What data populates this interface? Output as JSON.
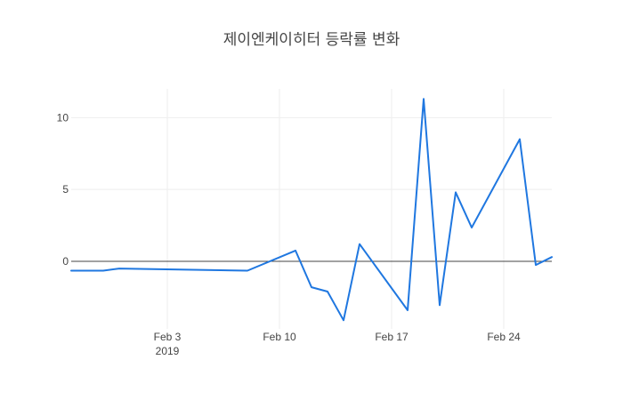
{
  "chart_data": {
    "type": "line",
    "title": "제이엔케이히터 등락률 변화",
    "xlabel": "",
    "ylabel": "",
    "x_axis": {
      "type": "date",
      "range": [
        "2019-01-28",
        "2019-02-27"
      ],
      "ticks": [
        {
          "value": "2019-02-03",
          "label": "Feb 3",
          "sublabel": "2019"
        },
        {
          "value": "2019-02-10",
          "label": "Feb 10",
          "sublabel": ""
        },
        {
          "value": "2019-02-17",
          "label": "Feb 17",
          "sublabel": ""
        },
        {
          "value": "2019-02-24",
          "label": "Feb 24",
          "sublabel": ""
        }
      ]
    },
    "y_axis": {
      "range": [
        -4.7,
        12.0
      ],
      "ticks": [
        {
          "value": 0,
          "label": "0"
        },
        {
          "value": 5,
          "label": "5"
        },
        {
          "value": 10,
          "label": "10"
        }
      ]
    },
    "grid": true,
    "zero_line": true,
    "series": [
      {
        "color": "#1f77e0",
        "points": [
          {
            "x": "2019-01-28",
            "y": -0.65
          },
          {
            "x": "2019-01-30",
            "y": -0.65
          },
          {
            "x": "2019-01-31",
            "y": -0.5
          },
          {
            "x": "2019-02-08",
            "y": -0.65
          },
          {
            "x": "2019-02-11",
            "y": 0.75
          },
          {
            "x": "2019-02-12",
            "y": -1.8
          },
          {
            "x": "2019-02-13",
            "y": -2.1
          },
          {
            "x": "2019-02-14",
            "y": -4.1
          },
          {
            "x": "2019-02-15",
            "y": 1.2
          },
          {
            "x": "2019-02-18",
            "y": -3.4
          },
          {
            "x": "2019-02-19",
            "y": 11.3
          },
          {
            "x": "2019-02-20",
            "y": -3.05
          },
          {
            "x": "2019-02-21",
            "y": 4.8
          },
          {
            "x": "2019-02-22",
            "y": 2.35
          },
          {
            "x": "2019-02-25",
            "y": 8.5
          },
          {
            "x": "2019-02-26",
            "y": -0.25
          },
          {
            "x": "2019-02-27",
            "y": 0.3
          }
        ]
      }
    ]
  }
}
